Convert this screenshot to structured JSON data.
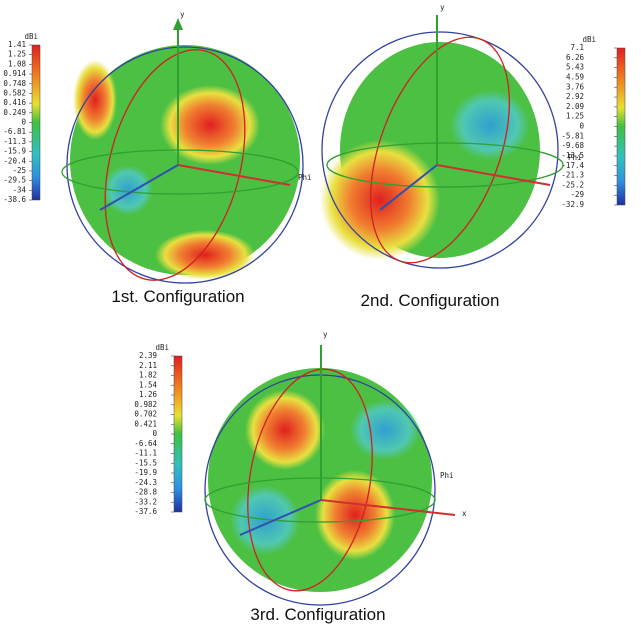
{
  "panels": [
    {
      "unit": "dBi",
      "scale": [
        "1.41",
        "1.25",
        "1.08",
        "0.914",
        "0.748",
        "0.582",
        "0.416",
        "0.249",
        "0",
        "-6.81",
        "-11.3",
        "-15.9",
        "-20.4",
        "-25",
        "-29.5",
        "-34",
        "-38.6"
      ],
      "axes": [
        "y",
        "Phi"
      ],
      "caption": "1st. Configuration"
    },
    {
      "unit": "dBi",
      "scale": [
        "7.1",
        "6.26",
        "5.43",
        "4.59",
        "3.76",
        "2.92",
        "2.09",
        "1.25",
        "0",
        "-5.81",
        "-9.68",
        "-13.5",
        "-17.4",
        "-21.3",
        "-25.2",
        "-29",
        "-32.9"
      ],
      "axes": [
        "y",
        "Phi"
      ],
      "caption": "2nd. Configuration"
    },
    {
      "unit": "dBi",
      "scale": [
        "2.39",
        "2.11",
        "1.82",
        "1.54",
        "1.26",
        "0.982",
        "0.702",
        "0.421",
        "0",
        "-6.64",
        "-11.1",
        "-15.5",
        "-19.9",
        "-24.3",
        "-28.8",
        "-33.2",
        "-37.6"
      ],
      "axes": [
        "y",
        "Phi",
        "x"
      ],
      "caption": "3rd. Configuration"
    }
  ]
}
